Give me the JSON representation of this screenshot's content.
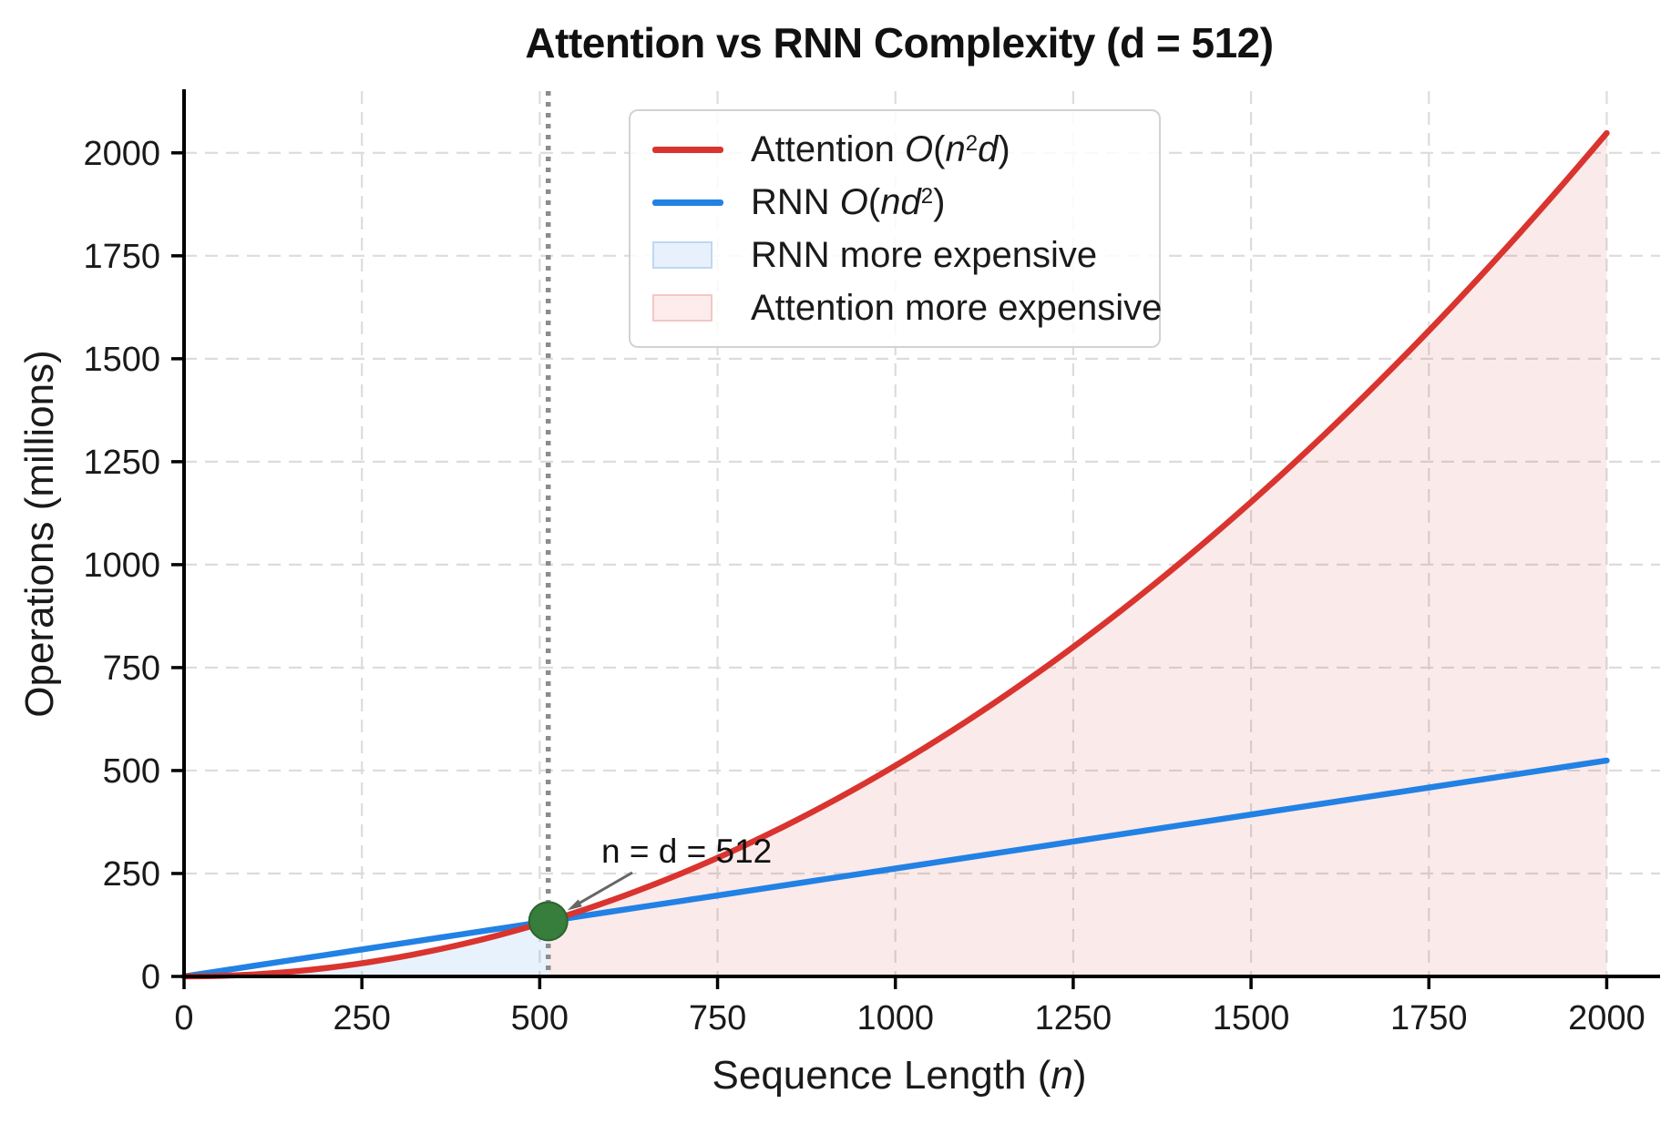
{
  "chart_data": {
    "type": "line",
    "title": "Attention vs RNN Complexity (d = 512)",
    "xlabel": "Sequence Length (n)",
    "xlabel_parts": {
      "pre": "Sequence Length (",
      "var": "n",
      "post": ")"
    },
    "ylabel": "Operations (millions)",
    "model_dim_d": 512,
    "x": [
      0,
      250,
      500,
      750,
      1000,
      1250,
      1500,
      1750,
      2000
    ],
    "series": [
      {
        "name": "Attention O(n²d)",
        "formula": "ops_millions = n²·d / 10⁶",
        "color": "#d9342f",
        "values": [
          0,
          32,
          128,
          288,
          512,
          800,
          1152,
          1568,
          2048
        ]
      },
      {
        "name": "RNN O(nd²)",
        "formula": "ops_millions = n·d² / 10⁶",
        "color": "#2281e4",
        "values": [
          0,
          65.5,
          131.1,
          196.6,
          262.1,
          327.7,
          393.2,
          458.8,
          524.3
        ]
      }
    ],
    "x_ticks": [
      0,
      250,
      500,
      750,
      1000,
      1250,
      1500,
      1750,
      2000
    ],
    "y_ticks": [
      0,
      250,
      500,
      750,
      1000,
      1250,
      1500,
      1750,
      2000
    ],
    "xlim": [
      0,
      2075
    ],
    "ylim": [
      0,
      2150
    ],
    "grid": true,
    "legend_position": "upper center",
    "crossover": {
      "n": 512,
      "ops_millions": 134.2,
      "label": "n = d = 512",
      "marker_color": "#377d3c",
      "marker_edge": "#2b632e",
      "vline_color": "#8c8c8c",
      "arrow_color": "#666666"
    },
    "regions": [
      {
        "label": "RNN more expensive",
        "x_from": 0,
        "x_to": 512,
        "fill": "rgba(34,129,228,0.10)"
      },
      {
        "label": "Attention more expensive",
        "x_from": 512,
        "x_to": 2000,
        "fill": "rgba(217,52,47,0.10)"
      }
    ],
    "grid_color": "#dcdcdc",
    "axis_color": "#000000",
    "legend": {
      "items": [
        {
          "swatch": "line",
          "color": "#d9342f",
          "parts": [
            {
              "t": "Attention "
            },
            {
              "t": "O",
              "i": true
            },
            {
              "t": "("
            },
            {
              "t": "n",
              "i": true
            },
            {
              "t": "2",
              "sup": true
            },
            {
              "t": "d",
              "i": true
            },
            {
              "t": ")"
            }
          ]
        },
        {
          "swatch": "line",
          "color": "#2281e4",
          "parts": [
            {
              "t": "RNN "
            },
            {
              "t": "O",
              "i": true
            },
            {
              "t": "("
            },
            {
              "t": "n",
              "i": true
            },
            {
              "t": "d",
              "i": true
            },
            {
              "t": "2",
              "sup": true
            },
            {
              "t": ")"
            }
          ]
        },
        {
          "swatch": "patch",
          "fill": "#e8f1fb",
          "border": "#bed7f3",
          "parts": [
            {
              "t": "RNN more expensive"
            }
          ]
        },
        {
          "swatch": "patch",
          "fill": "#fdeceb",
          "border": "#f3c7c5",
          "parts": [
            {
              "t": "Attention more expensive"
            }
          ]
        }
      ]
    }
  }
}
